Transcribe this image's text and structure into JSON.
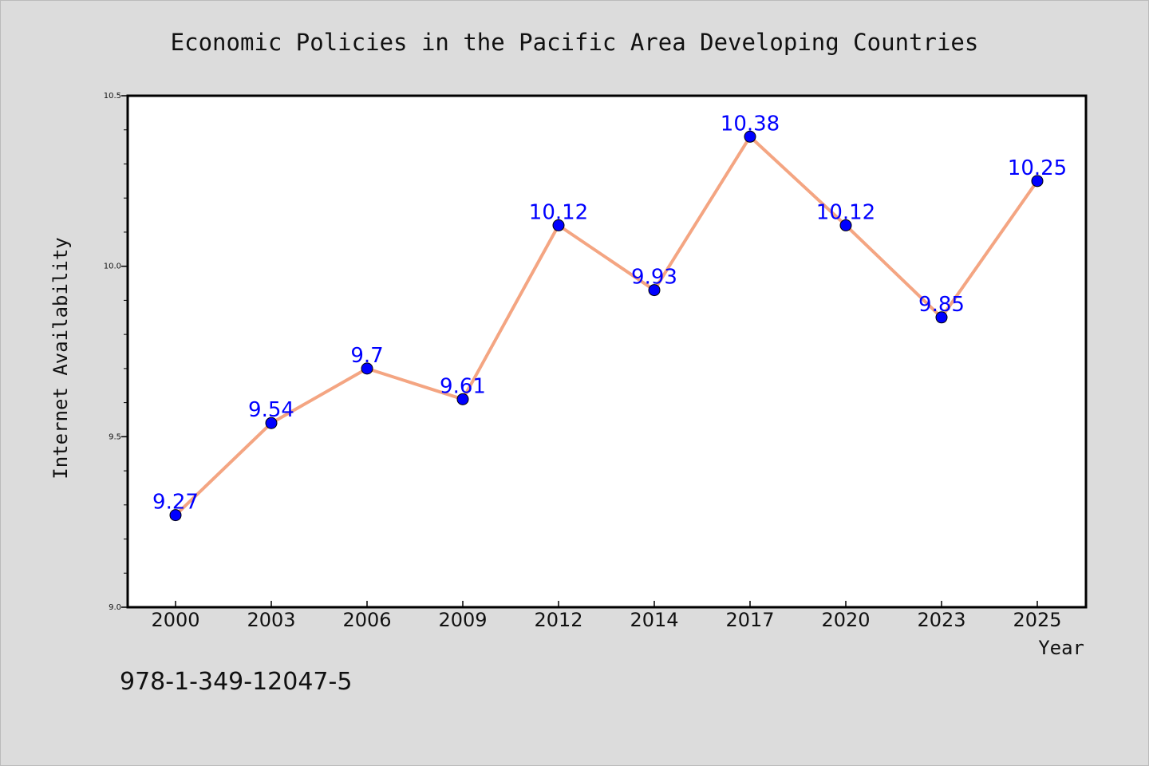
{
  "chart_data": {
    "type": "line",
    "title": "Economic Policies in the Pacific Area Developing Countries",
    "xlabel": "Year",
    "ylabel": "Internet Availability",
    "categories": [
      "2000",
      "2003",
      "2006",
      "2009",
      "2012",
      "2014",
      "2017",
      "2020",
      "2023",
      "2025"
    ],
    "values": [
      9.27,
      9.54,
      9.7,
      9.61,
      10.12,
      9.93,
      10.38,
      10.12,
      9.85,
      10.25
    ],
    "data_labels": [
      "9.27",
      "9.54",
      "9.7",
      "9.61",
      "10.12",
      "9.93",
      "10.38",
      "10.12",
      "9.85",
      "10.25"
    ],
    "ylim": [
      9.0,
      10.5
    ],
    "y_ticks": [
      "9.0",
      "9.5",
      "10.0",
      "10.5"
    ],
    "grid": false,
    "line_color": "#f4a582",
    "marker_color": "#0000ff",
    "label_color": "#0000ff"
  },
  "footer": {
    "isbn": "978-1-349-12047-5"
  }
}
